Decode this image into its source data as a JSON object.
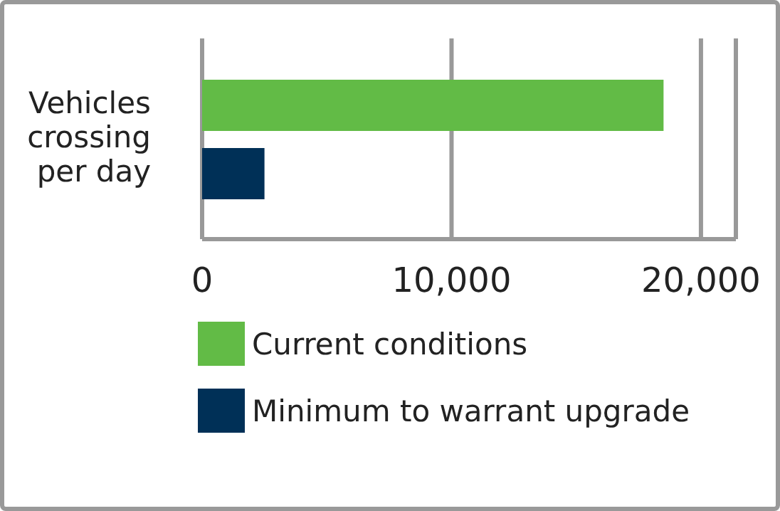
{
  "chart_data": {
    "type": "bar",
    "orientation": "horizontal",
    "categories": [
      "Vehicles crossing per day"
    ],
    "series": [
      {
        "name": "Current conditions",
        "color": "#62bb46",
        "values": [
          18500
        ]
      },
      {
        "name": "Minimum to warrant upgrade",
        "color": "#003057",
        "values": [
          2500
        ]
      }
    ],
    "xlim": [
      0,
      21400
    ],
    "xticks": [
      {
        "value": 0,
        "label": "0"
      },
      {
        "value": 10000,
        "label": "10,000"
      },
      {
        "value": 20000,
        "label": "20,000"
      }
    ],
    "grid": "x",
    "legend": "bottom"
  }
}
